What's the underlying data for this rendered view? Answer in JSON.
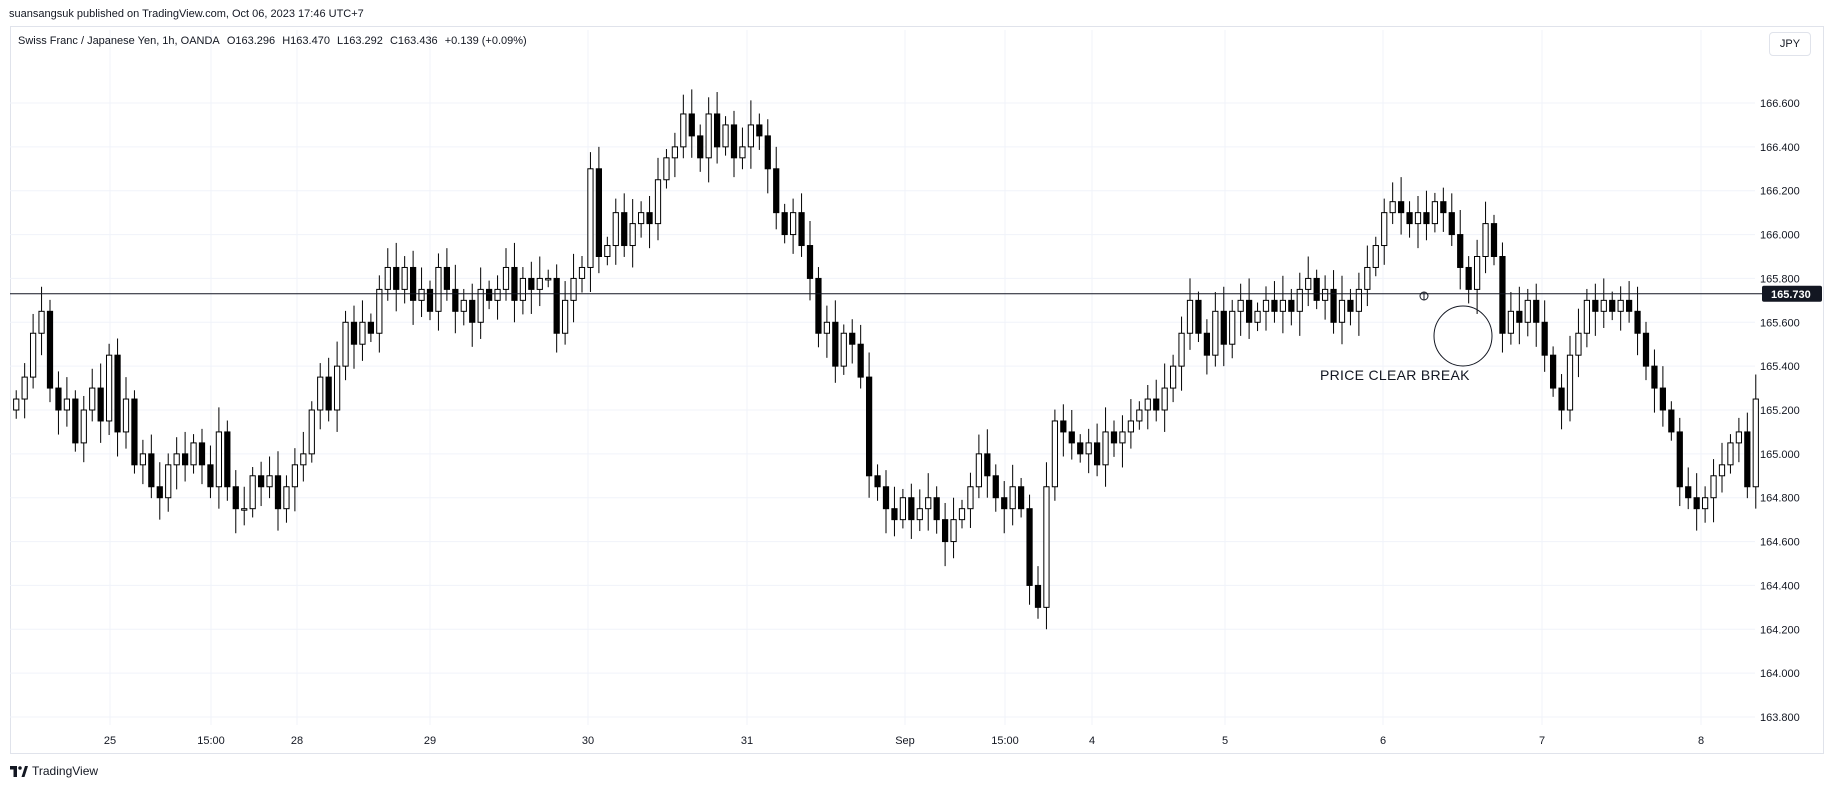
{
  "header": {
    "published_line": "suansangsuk published on TradingView.com, Oct 06, 2023 17:46 UTC+7"
  },
  "legend": {
    "symbol": "Swiss Franc / Japanese Yen, 1h, OANDA",
    "open": "O163.296",
    "high": "H163.470",
    "low": "L163.292",
    "close": "C163.436",
    "change": "+0.139 (+0.09%)"
  },
  "currency_button": "JPY",
  "footer": {
    "brand": "TradingView"
  },
  "colors": {
    "bull_body": "#ffffff",
    "bear_body": "#000000",
    "wick": "#000000",
    "grid": "#f0f3fa",
    "price_line": "#131722"
  },
  "chart_data": {
    "type": "candlestick",
    "title": "",
    "price_line": {
      "value": 165.73,
      "label": "165.730"
    },
    "y_ticks": [
      "163.800",
      "164.000",
      "164.200",
      "164.400",
      "164.600",
      "164.800",
      "165.000",
      "165.200",
      "165.400",
      "165.600",
      "165.800",
      "166.000",
      "166.200",
      "166.400",
      "166.600"
    ],
    "ylim": [
      163.7,
      166.8
    ],
    "x_ticks": [
      "25",
      "15:00",
      "28",
      "29",
      "30",
      "31",
      "Sep",
      "15:00",
      "4",
      "5",
      "6",
      "7",
      "8"
    ],
    "annotation": {
      "text": "PRICE CLEAR BREAK"
    },
    "closes": [
      165.25,
      165.35,
      165.55,
      165.65,
      165.3,
      165.2,
      165.25,
      165.05,
      165.2,
      165.3,
      165.15,
      165.45,
      165.1,
      165.25,
      164.95,
      165.0,
      164.85,
      164.8,
      164.95,
      165.0,
      164.95,
      165.05,
      164.95,
      164.85,
      165.1,
      164.85,
      164.75,
      164.75,
      164.9,
      164.85,
      164.9,
      164.75,
      164.85,
      164.95,
      165.0,
      165.2,
      165.35,
      165.2,
      165.4,
      165.6,
      165.5,
      165.6,
      165.55,
      165.75,
      165.85,
      165.75,
      165.85,
      165.7,
      165.75,
      165.65,
      165.85,
      165.75,
      165.65,
      165.7,
      165.6,
      165.75,
      165.7,
      165.75,
      165.85,
      165.7,
      165.8,
      165.75,
      165.8,
      165.8,
      165.55,
      165.7,
      165.8,
      165.85,
      166.3,
      165.9,
      165.95,
      166.1,
      165.95,
      166.05,
      166.1,
      166.05,
      166.25,
      166.35,
      166.4,
      166.55,
      166.45,
      166.35,
      166.55,
      166.4,
      166.5,
      166.35,
      166.4,
      166.5,
      166.45,
      166.3,
      166.1,
      166.0,
      166.1,
      165.95,
      165.8,
      165.55,
      165.6,
      165.4,
      165.55,
      165.5,
      165.35,
      164.9,
      164.85,
      164.75,
      164.7,
      164.8,
      164.7,
      164.75,
      164.8,
      164.7,
      164.6,
      164.7,
      164.75,
      164.85,
      165.0,
      164.9,
      164.8,
      164.75,
      164.85,
      164.75,
      164.4,
      164.3,
      164.85,
      165.15,
      165.1,
      165.05,
      165.0,
      165.05,
      164.95,
      165.1,
      165.05,
      165.1,
      165.15,
      165.2,
      165.25,
      165.2,
      165.3,
      165.4,
      165.55,
      165.7,
      165.55,
      165.45,
      165.65,
      165.5,
      165.65,
      165.7,
      165.6,
      165.65,
      165.7,
      165.65,
      165.7,
      165.65,
      165.75,
      165.8,
      165.7,
      165.75,
      165.6,
      165.7,
      165.65,
      165.75,
      165.85,
      165.95,
      166.1,
      166.15,
      166.1,
      166.05,
      166.1,
      166.05,
      166.15,
      166.1,
      166.0,
      165.85,
      165.75,
      165.9,
      166.05,
      165.9,
      165.55,
      165.65,
      165.6,
      165.7,
      165.6,
      165.45,
      165.3,
      165.2,
      165.45,
      165.55,
      165.7,
      165.65,
      165.7,
      165.65,
      165.7,
      165.65,
      165.55,
      165.4,
      165.3,
      165.2,
      165.1,
      164.85,
      164.8,
      164.75,
      164.8,
      164.9,
      164.95,
      165.05,
      165.1,
      164.85,
      165.25
    ]
  }
}
